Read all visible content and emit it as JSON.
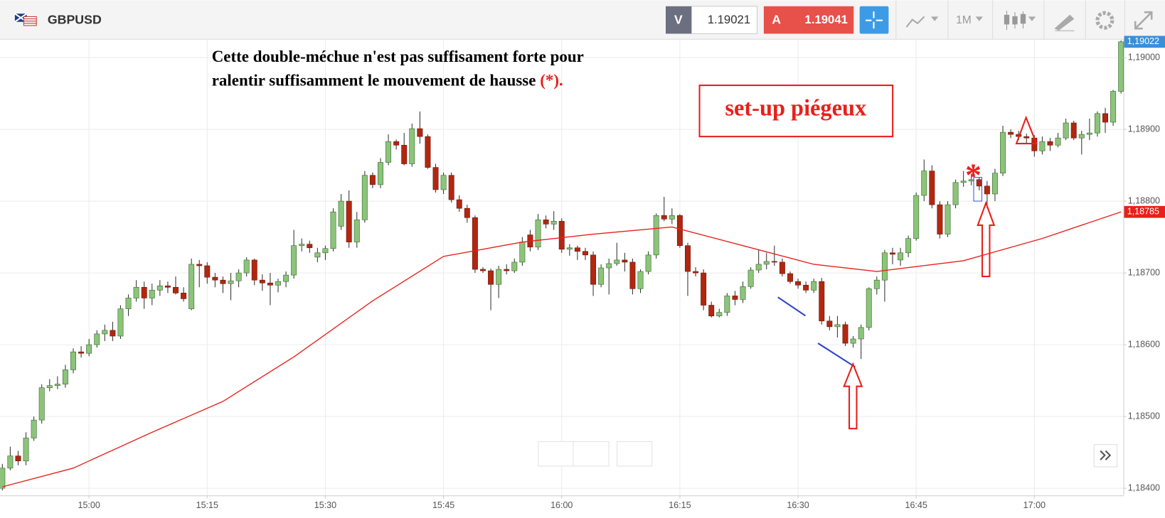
{
  "toolbar": {
    "symbol": "GBPUSD",
    "bid_label": "V",
    "bid": "1.19021",
    "ask_label": "A",
    "ask": "1.19041",
    "timeframe": "1M"
  },
  "annotations": {
    "note_line1": "Cette double-méchue n'est pas suffisament forte pour",
    "note_line2": "ralentir suffisamment le mouvement de hausse",
    "note_marker": "(*).",
    "box": "set-up piégeux",
    "star": "*"
  },
  "chart_data": {
    "type": "candlestick",
    "x": [
      -11,
      -10,
      -9,
      -8,
      -7,
      -6,
      -5,
      -4,
      -3,
      -2,
      -1,
      0,
      1,
      2,
      3,
      4,
      5,
      6,
      7,
      8,
      9,
      10,
      11,
      12,
      13,
      14,
      15,
      16,
      17,
      18,
      19,
      20,
      21,
      22,
      23,
      24,
      25,
      26,
      27,
      28,
      29,
      30,
      31,
      32,
      33,
      34,
      35,
      36,
      37,
      38,
      39,
      40,
      41,
      42,
      43,
      44,
      45,
      46,
      47,
      48,
      49,
      50,
      51,
      52,
      53,
      54,
      55,
      56,
      57,
      58,
      59,
      60,
      61,
      62,
      63,
      64,
      65,
      66,
      67,
      68,
      69,
      70,
      71,
      72,
      73,
      74,
      75,
      76,
      77,
      78,
      79,
      80,
      81,
      82,
      83,
      84,
      85,
      86,
      87,
      88,
      89,
      90,
      91,
      92,
      93,
      94,
      95,
      96,
      97,
      98,
      99,
      100,
      101,
      102,
      103,
      104,
      105,
      106,
      107,
      108,
      109,
      110,
      111,
      112,
      113,
      114,
      115,
      116,
      117,
      118,
      119,
      120,
      121,
      122,
      123,
      124,
      125,
      126,
      127,
      128,
      129,
      130,
      131
    ],
    "open": [
      1.184,
      1.18428,
      1.18445,
      1.18438,
      1.1847,
      1.18495,
      1.1854,
      1.18543,
      1.18545,
      1.18565,
      1.1859,
      1.18588,
      1.186,
      1.18615,
      1.1862,
      1.18612,
      1.1865,
      1.18665,
      1.1868,
      1.18665,
      1.18676,
      1.18682,
      1.1868,
      1.18672,
      1.1865,
      1.18712,
      1.1871,
      1.18694,
      1.1869,
      1.18685,
      1.18689,
      1.187,
      1.18718,
      1.1869,
      1.18686,
      1.18683,
      1.18688,
      1.18697,
      1.18738,
      1.1874,
      1.18722,
      1.18728,
      1.18734,
      1.18765,
      1.188,
      1.18743,
      1.18774,
      1.18836,
      1.18823,
      1.18854,
      1.18883,
      1.18878,
      1.18852,
      1.18901,
      1.1889,
      1.18847,
      1.18816,
      1.18836,
      1.18802,
      1.1879,
      1.18777,
      1.18705,
      1.18703,
      1.18684,
      1.18705,
      1.18703,
      1.18715,
      1.18753,
      1.18736,
      1.18774,
      1.18768,
      1.18772,
      1.18733,
      1.18735,
      1.1873,
      1.18725,
      1.18684,
      1.18707,
      1.18713,
      1.18718,
      1.18715,
      1.18678,
      1.18702,
      1.18725,
      1.1878,
      1.18775,
      1.1878,
      1.18738,
      1.18702,
      1.187,
      1.18655,
      1.1864,
      1.18645,
      1.18668,
      1.18663,
      1.18681,
      1.18704,
      1.18712,
      1.18716,
      1.18715,
      1.18699,
      1.18688,
      1.18683,
      1.18676,
      1.18688,
      1.18633,
      1.18625,
      1.18628,
      1.18602,
      1.18608,
      1.18624,
      1.18678,
      1.1869,
      1.18728,
      1.18718,
      1.18728,
      1.18748,
      1.18808,
      1.18842,
      1.18795,
      1.18754,
      1.18795,
      1.18826,
      1.18828,
      1.1883,
      1.18821,
      1.1881,
      1.18839,
      1.18896,
      1.18893,
      1.1889,
      1.18888,
      1.1887,
      1.18883,
      1.18878,
      1.18888,
      1.18909,
      1.18888,
      1.18893,
      1.18895,
      1.18922,
      1.1891,
      1.18953
    ],
    "high": [
      1.18434,
      1.18458,
      1.18452,
      1.18478,
      1.185,
      1.18545,
      1.18552,
      1.18556,
      1.18572,
      1.18595,
      1.18598,
      1.18608,
      1.1862,
      1.18628,
      1.18632,
      1.18655,
      1.1867,
      1.1869,
      1.18688,
      1.18685,
      1.1869,
      1.18688,
      1.18695,
      1.1868,
      1.1872,
      1.18718,
      1.18715,
      1.187,
      1.18695,
      1.187,
      1.18705,
      1.18722,
      1.1872,
      1.18698,
      1.187,
      1.18692,
      1.18702,
      1.1876,
      1.18748,
      1.18745,
      1.18735,
      1.18738,
      1.1879,
      1.1881,
      1.18815,
      1.18785,
      1.18842,
      1.1884,
      1.1886,
      1.18893,
      1.18886,
      1.18895,
      1.18908,
      1.18925,
      1.18893,
      1.18852,
      1.1884,
      1.1884,
      1.18808,
      1.18795,
      1.1878,
      1.18708,
      1.18706,
      1.1871,
      1.18712,
      1.1872,
      1.1875,
      1.1876,
      1.18782,
      1.1878,
      1.18786,
      1.18776,
      1.1874,
      1.18738,
      1.18735,
      1.1873,
      1.18712,
      1.1872,
      1.18742,
      1.18728,
      1.1872,
      1.18705,
      1.1873,
      1.18783,
      1.18806,
      1.1879,
      1.18782,
      1.18742,
      1.18708,
      1.18705,
      1.1866,
      1.1865,
      1.18672,
      1.18675,
      1.18688,
      1.18708,
      1.18732,
      1.18728,
      1.18738,
      1.1872,
      1.18702,
      1.18692,
      1.18688,
      1.18692,
      1.18693,
      1.1864,
      1.1864,
      1.18632,
      1.18612,
      1.18628,
      1.1868,
      1.18695,
      1.18732,
      1.18735,
      1.18735,
      1.18752,
      1.18812,
      1.18858,
      1.1885,
      1.188,
      1.188,
      1.1883,
      1.18842,
      1.18838,
      1.18833,
      1.18828,
      1.18845,
      1.18905,
      1.189,
      1.18898,
      1.18894,
      1.18892,
      1.1889,
      1.18888,
      1.18895,
      1.18915,
      1.18912,
      1.18898,
      1.18915,
      1.18925,
      1.1893,
      1.18955,
      1.19024
    ],
    "low": [
      1.18397,
      1.18425,
      1.18432,
      1.18432,
      1.18466,
      1.1849,
      1.18535,
      1.18538,
      1.1854,
      1.1856,
      1.18582,
      1.18584,
      1.18596,
      1.18605,
      1.18605,
      1.18608,
      1.1864,
      1.1866,
      1.1865,
      1.18655,
      1.18668,
      1.18672,
      1.1867,
      1.1866,
      1.18648,
      1.1868,
      1.18685,
      1.1868,
      1.18672,
      1.18662,
      1.1868,
      1.18695,
      1.18683,
      1.18675,
      1.18655,
      1.18673,
      1.1868,
      1.18692,
      1.1873,
      1.18728,
      1.18715,
      1.18718,
      1.1873,
      1.1876,
      1.18735,
      1.18735,
      1.1877,
      1.18818,
      1.18818,
      1.1885,
      1.18872,
      1.1885,
      1.18848,
      1.1888,
      1.18845,
      1.18812,
      1.1881,
      1.18798,
      1.18785,
      1.1877,
      1.187,
      1.187,
      1.18648,
      1.18665,
      1.18698,
      1.187,
      1.1871,
      1.1873,
      1.18732,
      1.18762,
      1.1876,
      1.18728,
      1.18724,
      1.18718,
      1.18718,
      1.18668,
      1.1868,
      1.1867,
      1.1871,
      1.18702,
      1.1867,
      1.18672,
      1.18698,
      1.1872,
      1.18772,
      1.18768,
      1.18735,
      1.18668,
      1.18695,
      1.18648,
      1.18638,
      1.18638,
      1.1864,
      1.18655,
      1.18658,
      1.18678,
      1.187,
      1.18705,
      1.1871,
      1.18695,
      1.18685,
      1.18678,
      1.18672,
      1.18672,
      1.18628,
      1.1862,
      1.1861,
      1.18598,
      1.18596,
      1.1858,
      1.1862,
      1.1867,
      1.1866,
      1.18712,
      1.1871,
      1.18722,
      1.18745,
      1.188,
      1.1879,
      1.18748,
      1.1875,
      1.1879,
      1.1882,
      1.18822,
      1.18815,
      1.1879,
      1.188,
      1.18835,
      1.18888,
      1.18885,
      1.1888,
      1.18862,
      1.18865,
      1.1887,
      1.18875,
      1.18885,
      1.18885,
      1.18865,
      1.18885,
      1.1889,
      1.18895,
      1.18905,
      1.1895
    ],
    "close": [
      1.18428,
      1.18445,
      1.18438,
      1.1847,
      1.18495,
      1.1854,
      1.18543,
      1.18545,
      1.18565,
      1.1859,
      1.18588,
      1.186,
      1.18615,
      1.1862,
      1.18612,
      1.1865,
      1.18665,
      1.1868,
      1.18665,
      1.18676,
      1.18682,
      1.1868,
      1.18672,
      1.18664,
      1.18712,
      1.1871,
      1.18694,
      1.1869,
      1.18685,
      1.18689,
      1.187,
      1.18718,
      1.1869,
      1.18686,
      1.18683,
      1.18688,
      1.18697,
      1.18738,
      1.1874,
      1.18735,
      1.18728,
      1.18734,
      1.18785,
      1.188,
      1.18743,
      1.18774,
      1.18836,
      1.18823,
      1.18854,
      1.18883,
      1.18878,
      1.18852,
      1.18901,
      1.1889,
      1.18847,
      1.18816,
      1.18836,
      1.18802,
      1.1879,
      1.18777,
      1.18705,
      1.18703,
      1.18684,
      1.18705,
      1.18703,
      1.18715,
      1.18743,
      1.18736,
      1.18774,
      1.18768,
      1.18772,
      1.18733,
      1.18735,
      1.1873,
      1.18725,
      1.18684,
      1.18707,
      1.18713,
      1.18718,
      1.18715,
      1.18678,
      1.18702,
      1.18725,
      1.1878,
      1.18775,
      1.1878,
      1.18738,
      1.18702,
      1.187,
      1.18655,
      1.1864,
      1.18645,
      1.18668,
      1.18663,
      1.18681,
      1.18704,
      1.18712,
      1.18716,
      1.18715,
      1.18699,
      1.18688,
      1.18683,
      1.18676,
      1.18688,
      1.18633,
      1.18625,
      1.18628,
      1.18602,
      1.18608,
      1.18624,
      1.18678,
      1.1869,
      1.18728,
      1.18726,
      1.18728,
      1.18748,
      1.18808,
      1.18842,
      1.18795,
      1.18754,
      1.18795,
      1.18826,
      1.18828,
      1.1883,
      1.18821,
      1.1881,
      1.18839,
      1.18896,
      1.18893,
      1.1889,
      1.18888,
      1.1887,
      1.18883,
      1.18878,
      1.18888,
      1.18909,
      1.18888,
      1.18893,
      1.18895,
      1.18922,
      1.1891,
      1.18953,
      1.19022
    ],
    "up_color": "#8cc47a",
    "down_color": "#b3260f",
    "ma_color": "#e8201a",
    "ma": {
      "x": [
        -11,
        -2,
        8,
        17,
        26,
        36,
        45,
        55,
        64,
        74,
        83,
        92,
        100,
        111,
        121,
        131
      ],
      "values": [
        1.18402,
        1.18428,
        1.18478,
        1.18521,
        1.18583,
        1.18661,
        1.18723,
        1.18743,
        1.18754,
        1.18764,
        1.18738,
        1.18712,
        1.18702,
        1.18717,
        1.18748,
        1.18785
      ]
    },
    "xlim": [
      -11.3,
      131.3
    ],
    "ylim": [
      1.1839,
      1.19025
    ],
    "xticks": [
      {
        "value": 0,
        "label": "15:00"
      },
      {
        "value": 15,
        "label": "15:15"
      },
      {
        "value": 30,
        "label": "15:30"
      },
      {
        "value": 45,
        "label": "15:45"
      },
      {
        "value": 60,
        "label": "16:00"
      },
      {
        "value": 75,
        "label": "16:15"
      },
      {
        "value": 90,
        "label": "16:30"
      },
      {
        "value": 105,
        "label": "16:45"
      },
      {
        "value": 120,
        "label": "17:00"
      }
    ],
    "yticks": [
      {
        "value": 1.184,
        "label": "1,18400"
      },
      {
        "value": 1.185,
        "label": "1,18500"
      },
      {
        "value": 1.186,
        "label": "1,18600"
      },
      {
        "value": 1.187,
        "label": "1,18700"
      },
      {
        "value": 1.188,
        "label": "1,18800"
      },
      {
        "value": 1.189,
        "label": "1,18900"
      },
      {
        "value": 1.19,
        "label": "1,19000"
      }
    ],
    "last_price": {
      "value": 1.19022,
      "label": "1,19022"
    },
    "ma_last": {
      "value": 1.18785,
      "label": "1,18785"
    },
    "grid": true
  }
}
